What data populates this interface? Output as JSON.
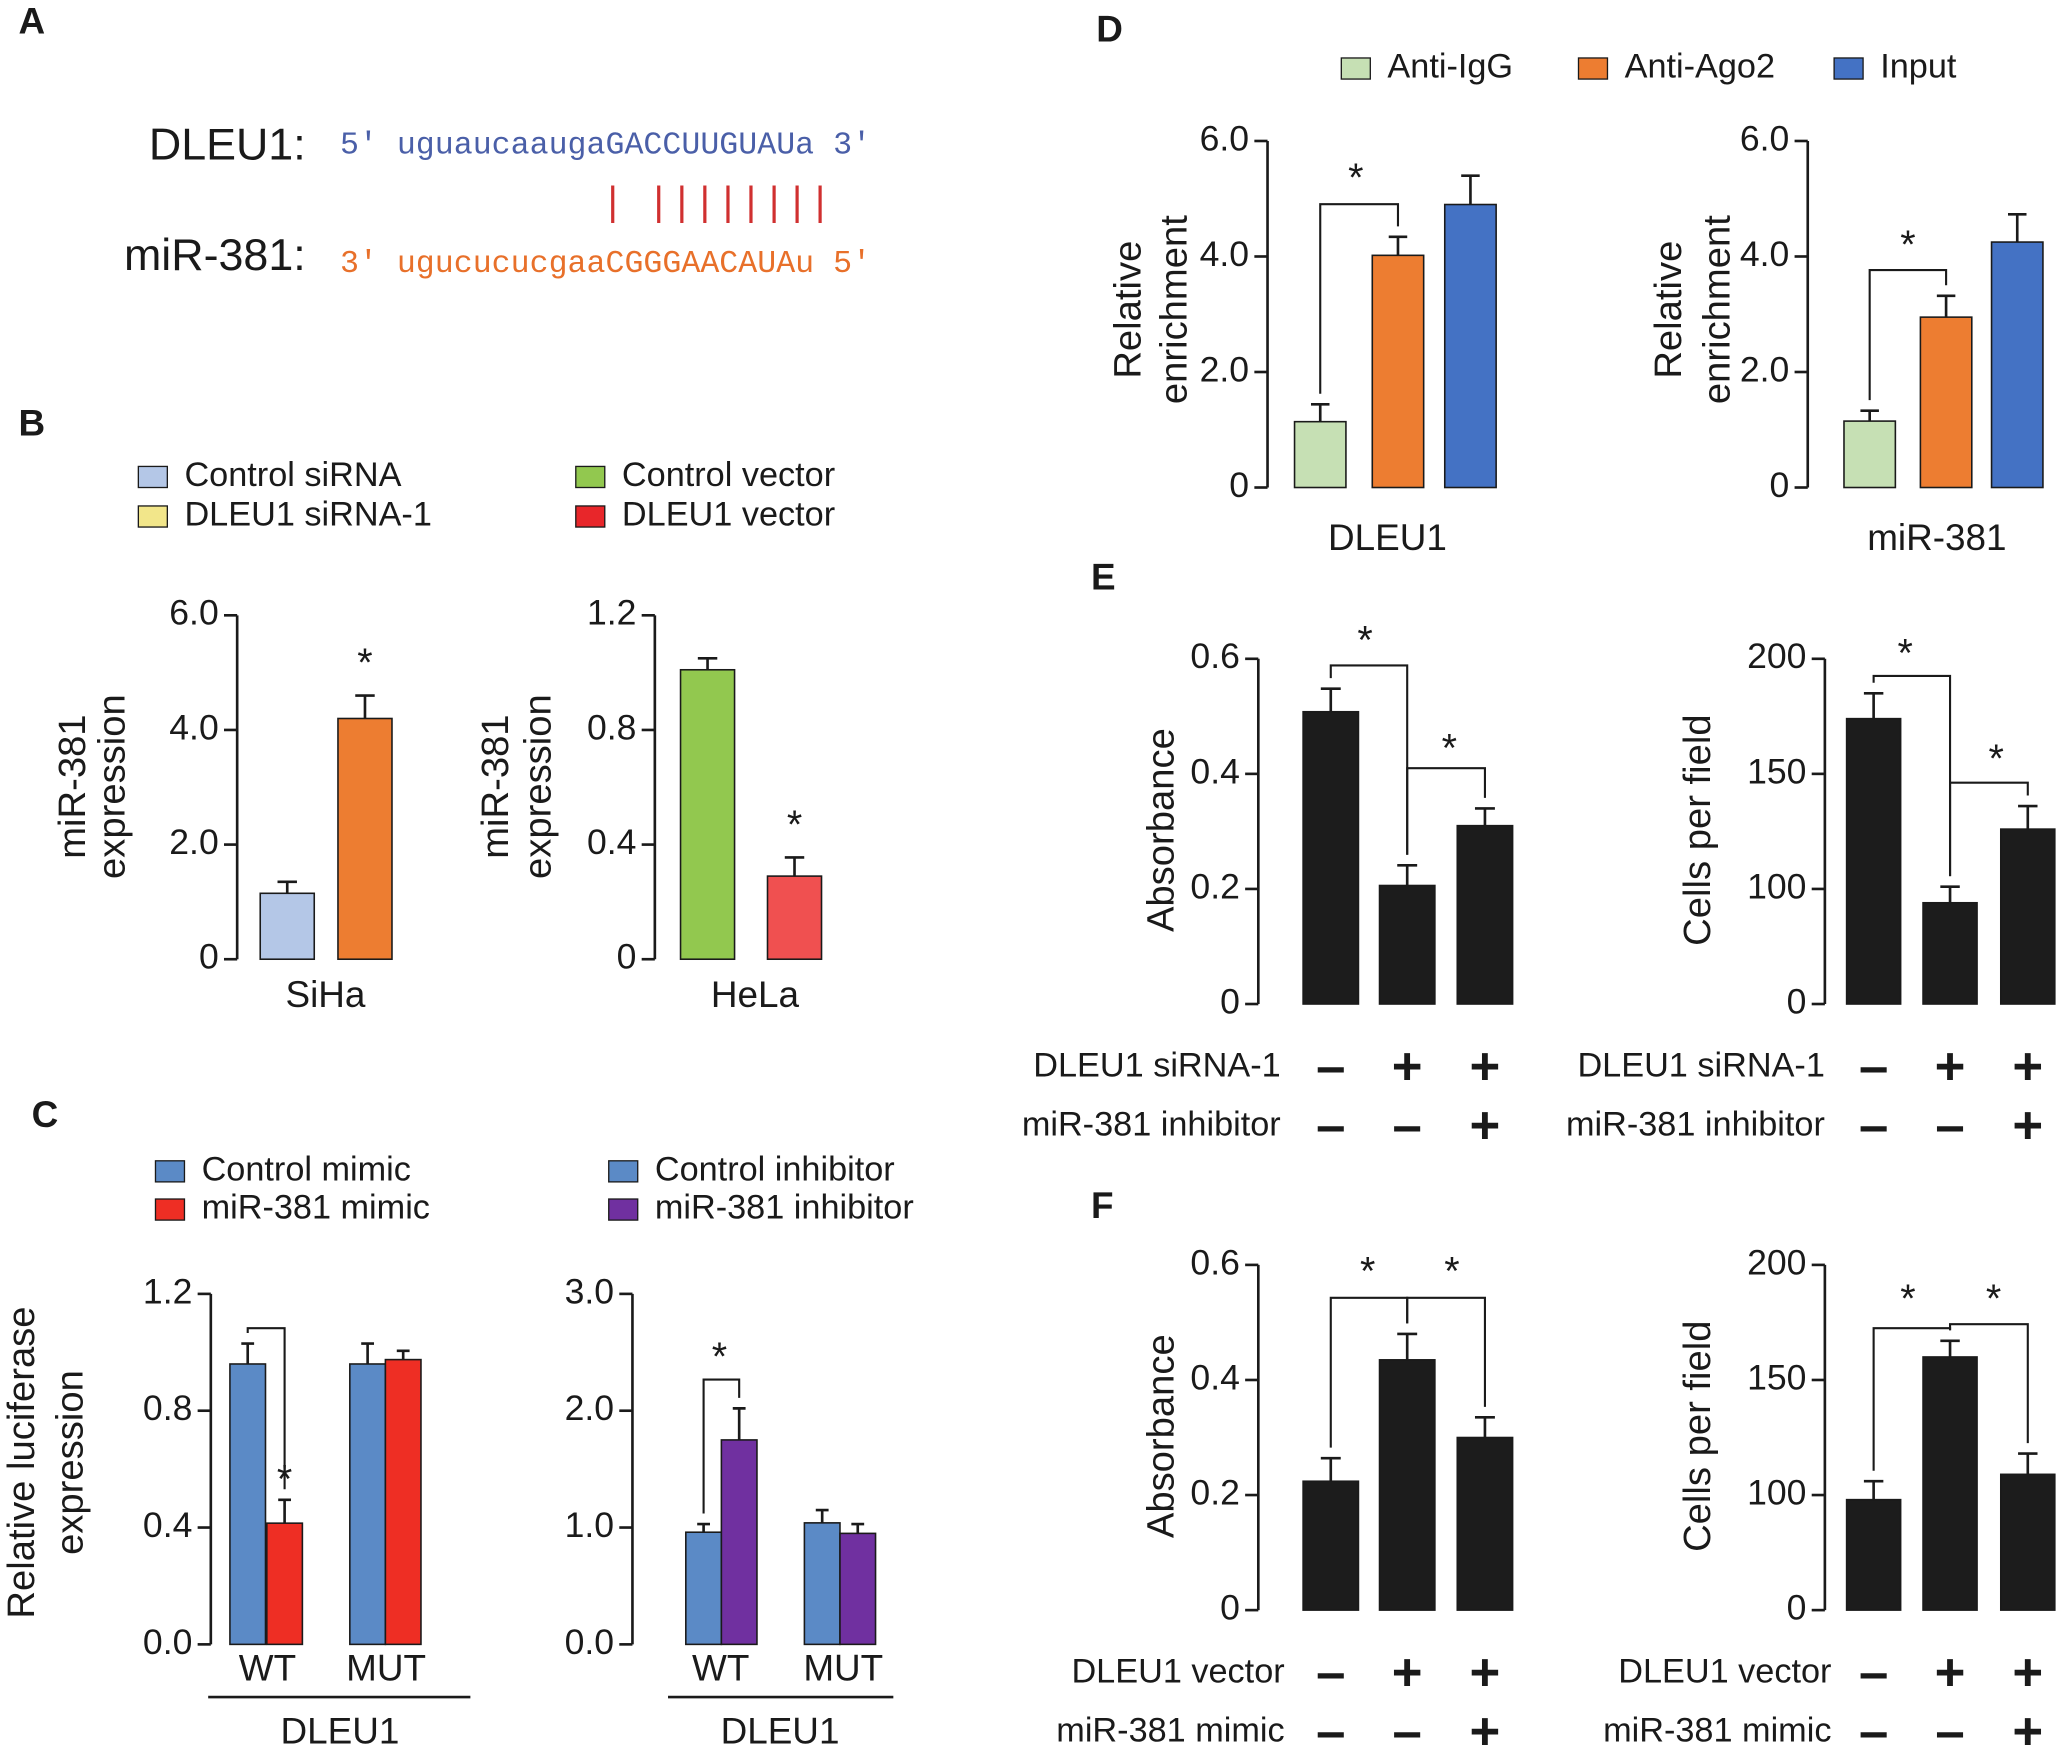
{
  "panel_labels": [
    "A",
    "B",
    "C",
    "D",
    "E",
    "F"
  ],
  "sequence": {
    "target_name": "DLEU1:",
    "target": "5' uguaucaaugaGACCUUGUAUa 3'",
    "pairing": "| ||||||||",
    "mirna_name": "miR-381:",
    "mirna": "3' ugucucucgaaCGGGAACAUAu 5'"
  },
  "chart_data": [
    {
      "type": "bar",
      "categories": [
        "SiHa"
      ],
      "y_label": [
        "miR-381",
        "expression"
      ],
      "series": [
        {
          "name": "Control siRNA",
          "color": "#b4c7e7",
          "values": [
            1.15
          ],
          "errors": [
            0.2
          ]
        },
        {
          "name": "DLEU1 siRNA-1",
          "color": "#ed7d31",
          "legend_color": "#f2e68a",
          "values": [
            4.2
          ],
          "errors": [
            0.4
          ]
        }
      ],
      "ylim": [
        0,
        6
      ],
      "yticks": [
        0,
        {
          "value": 2,
          "label": "2.0"
        },
        {
          "value": 4,
          "label": "4.0"
        },
        {
          "value": 6,
          "label": "6.0"
        }
      ],
      "annotations": [
        "*"
      ]
    },
    {
      "type": "bar",
      "categories": [
        "HeLa"
      ],
      "y_label": [
        "miR-381",
        "expression"
      ],
      "series": [
        {
          "name": "Control vector",
          "color": "#92c84f",
          "values": [
            1.01
          ],
          "errors": [
            0.04
          ]
        },
        {
          "name": "DLEU1 vector",
          "color": "#f05050",
          "legend_color": "#e8262a",
          "values": [
            0.29
          ],
          "errors": [
            0.065
          ]
        }
      ],
      "ylim": [
        0,
        1.2
      ],
      "yticks": [
        0,
        0.4,
        0.8,
        1.2
      ],
      "annotations": [
        "*"
      ]
    },
    {
      "type": "bar",
      "categories": [
        "WT",
        "MUT"
      ],
      "group_label": "DLEU1",
      "y_label": [
        "Relative luciferase",
        "expression"
      ],
      "series": [
        {
          "name": "Control mimic",
          "color": "#5b8ac6",
          "values": [
            0.96,
            0.96
          ],
          "errors": [
            0.07,
            0.07
          ]
        },
        {
          "name": "miR-381 mimic",
          "color": "#ee2e24",
          "values": [
            0.415,
            0.975
          ],
          "errors": [
            0.08,
            0.03
          ]
        }
      ],
      "ylim": [
        0,
        1.2
      ],
      "yticks": [
        {
          "value": 0,
          "label": "0.0"
        },
        0.4,
        0.8,
        1.2
      ],
      "annotations": [
        "*"
      ]
    },
    {
      "type": "bar",
      "categories": [
        "WT",
        "MUT"
      ],
      "group_label": "DLEU1",
      "series": [
        {
          "name": "Control inhibitor",
          "color": "#5b8ac6",
          "values": [
            0.96,
            1.04
          ],
          "errors": [
            0.07,
            0.11
          ]
        },
        {
          "name": "miR-381 inhibitor",
          "color": "#7030a0",
          "values": [
            1.75,
            0.95
          ],
          "errors": [
            0.27,
            0.08
          ]
        }
      ],
      "ylim": [
        0,
        3
      ],
      "yticks": [
        {
          "value": 0,
          "label": "0.0"
        },
        {
          "value": 1,
          "label": "1.0"
        },
        {
          "value": 2,
          "label": "2.0"
        },
        {
          "value": 3,
          "label": "3.0"
        }
      ],
      "annotations": [
        "*"
      ]
    },
    {
      "type": "bar",
      "categories": [
        "DLEU1"
      ],
      "y_label": [
        "Relative",
        "enrichment"
      ],
      "series": [
        {
          "name": "Anti-IgG",
          "color": "#c6e0b4",
          "values": [
            1.14
          ],
          "errors": [
            0.3
          ]
        },
        {
          "name": "Anti-Ago2",
          "color": "#ed7d31",
          "values": [
            4.02
          ],
          "errors": [
            0.32
          ]
        },
        {
          "name": "Input",
          "color": "#4472c4",
          "values": [
            4.9
          ],
          "errors": [
            0.5
          ]
        }
      ],
      "ylim": [
        0,
        6
      ],
      "yticks": [
        0,
        {
          "value": 2,
          "label": "2.0"
        },
        {
          "value": 4,
          "label": "4.0"
        },
        {
          "value": 6,
          "label": "6.0"
        }
      ],
      "annotations": [
        "*"
      ]
    },
    {
      "type": "bar",
      "categories": [
        "miR-381"
      ],
      "y_label": [
        "Relative",
        "enrichment"
      ],
      "series": [
        {
          "color": "#c6e0b4",
          "values": [
            1.15
          ],
          "errors": [
            0.18
          ]
        },
        {
          "color": "#ed7d31",
          "values": [
            2.95
          ],
          "errors": [
            0.37
          ]
        },
        {
          "color": "#4472c4",
          "values": [
            4.25
          ],
          "errors": [
            0.48
          ]
        }
      ],
      "ylim": [
        0,
        6
      ],
      "yticks": [
        0,
        {
          "value": 2,
          "label": "2.0"
        },
        {
          "value": 4,
          "label": "4.0"
        },
        {
          "value": 6,
          "label": "6.0"
        }
      ],
      "annotations": [
        "*"
      ]
    },
    {
      "type": "bar",
      "categories": [
        null,
        null,
        null
      ],
      "y_label": [
        "Absorbance"
      ],
      "series": [
        {
          "color": "#1c1c1c",
          "values": [
            0.508,
            0.206,
            0.31
          ],
          "errors": [
            0.04,
            0.035,
            0.03
          ]
        }
      ],
      "ylim": [
        0,
        0.6
      ],
      "yticks": [
        0,
        0.2,
        0.4,
        0.6
      ],
      "rows": [
        {
          "label": "DLEU1 siRNA-1",
          "signs": [
            "–",
            "+",
            "+"
          ]
        },
        {
          "label": "miR-381 inhibitor",
          "signs": [
            "–",
            "–",
            "+"
          ]
        }
      ],
      "annotations": [
        "*",
        "*"
      ]
    },
    {
      "type": "bar",
      "categories": [
        null,
        null,
        null
      ],
      "y_label": [
        "Cells per field"
      ],
      "series": [
        {
          "color": "#1c1c1c",
          "values": [
            174,
            94,
            126
          ],
          "errors": [
            11,
            7,
            10
          ]
        }
      ],
      "ylim": [
        50,
        200
      ],
      "yticks": [
        {
          "value": 50,
          "label": "0"
        },
        100,
        150,
        200
      ],
      "rows": [
        {
          "label": "DLEU1 siRNA-1",
          "signs": [
            "–",
            "+",
            "+"
          ]
        },
        {
          "label": "miR-381 inhibitor",
          "signs": [
            "–",
            "–",
            "+"
          ]
        }
      ],
      "annotations": [
        "*",
        "*"
      ]
    },
    {
      "type": "bar",
      "categories": [
        null,
        null,
        null
      ],
      "y_label": [
        "Absorbance"
      ],
      "series": [
        {
          "color": "#1c1c1c",
          "values": [
            0.224,
            0.435,
            0.3
          ],
          "errors": [
            0.04,
            0.045,
            0.035
          ]
        }
      ],
      "ylim": [
        0,
        0.6
      ],
      "yticks": [
        0,
        0.2,
        0.4,
        0.6
      ],
      "rows": [
        {
          "label": "DLEU1 vector",
          "signs": [
            "–",
            "+",
            "+"
          ]
        },
        {
          "label": "miR-381 mimic",
          "signs": [
            "–",
            "–",
            "+"
          ]
        }
      ],
      "annotations": [
        "*",
        "*"
      ]
    },
    {
      "type": "bar",
      "categories": [
        null,
        null,
        null
      ],
      "y_label": [
        "Cells per field"
      ],
      "series": [
        {
          "color": "#1c1c1c",
          "values": [
            98,
            160,
            109
          ],
          "errors": [
            8,
            7,
            9
          ]
        }
      ],
      "ylim": [
        50,
        200
      ],
      "yticks": [
        {
          "value": 50,
          "label": "0"
        },
        100,
        150,
        200
      ],
      "rows": [
        {
          "label": "DLEU1 vector",
          "signs": [
            "–",
            "+",
            "+"
          ]
        },
        {
          "label": "miR-381 mimic",
          "signs": [
            "–",
            "–",
            "+"
          ]
        }
      ],
      "annotations": [
        "*",
        "*"
      ]
    }
  ]
}
